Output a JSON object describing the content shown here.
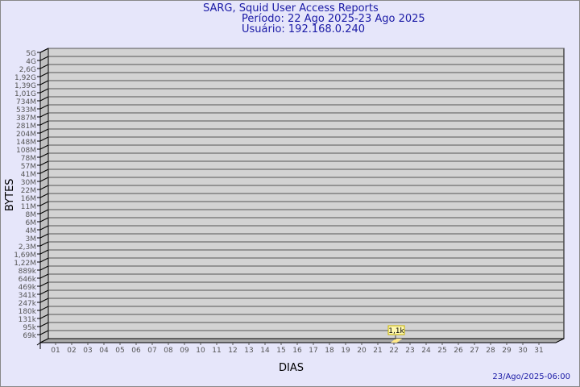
{
  "chart_data": {
    "type": "bar",
    "title": "SARG, Squid User Access Reports",
    "subtitle_period": "Período: 22 Ago 2025-23 Ago 2025",
    "subtitle_user": "Usuário: 192.168.0.240",
    "xlabel": "DIAS",
    "ylabel": "BYTES",
    "footer": "23/Ago/2025-06:00",
    "categories": [
      "01",
      "02",
      "03",
      "04",
      "05",
      "06",
      "07",
      "08",
      "09",
      "10",
      "11",
      "12",
      "13",
      "14",
      "15",
      "16",
      "17",
      "18",
      "19",
      "20",
      "21",
      "22",
      "23",
      "24",
      "25",
      "26",
      "27",
      "28",
      "29",
      "30",
      "31"
    ],
    "y_tick_labels": [
      "5G",
      "4G",
      "2,6G",
      "1,92G",
      "1,39G",
      "1,01G",
      "734M",
      "533M",
      "387M",
      "281M",
      "204M",
      "148M",
      "108M",
      "78M",
      "57M",
      "41M",
      "30M",
      "22M",
      "16M",
      "11M",
      "8M",
      "6M",
      "4M",
      "3M",
      "2,3M",
      "1,69M",
      "1,22M",
      "889k",
      "646k",
      "469k",
      "341k",
      "247k",
      "180k",
      "131k",
      "95k",
      "69k"
    ],
    "y_scale": "log",
    "grid": true,
    "series": [
      {
        "points": [
          {
            "x": "22",
            "value_bytes": 1100,
            "label": "1,1k"
          }
        ]
      }
    ],
    "colors": {
      "background": "#e6e6fa",
      "plot": "#d3d3d3",
      "bar": "#ffe88a",
      "title": "#1a1aa6"
    }
  }
}
